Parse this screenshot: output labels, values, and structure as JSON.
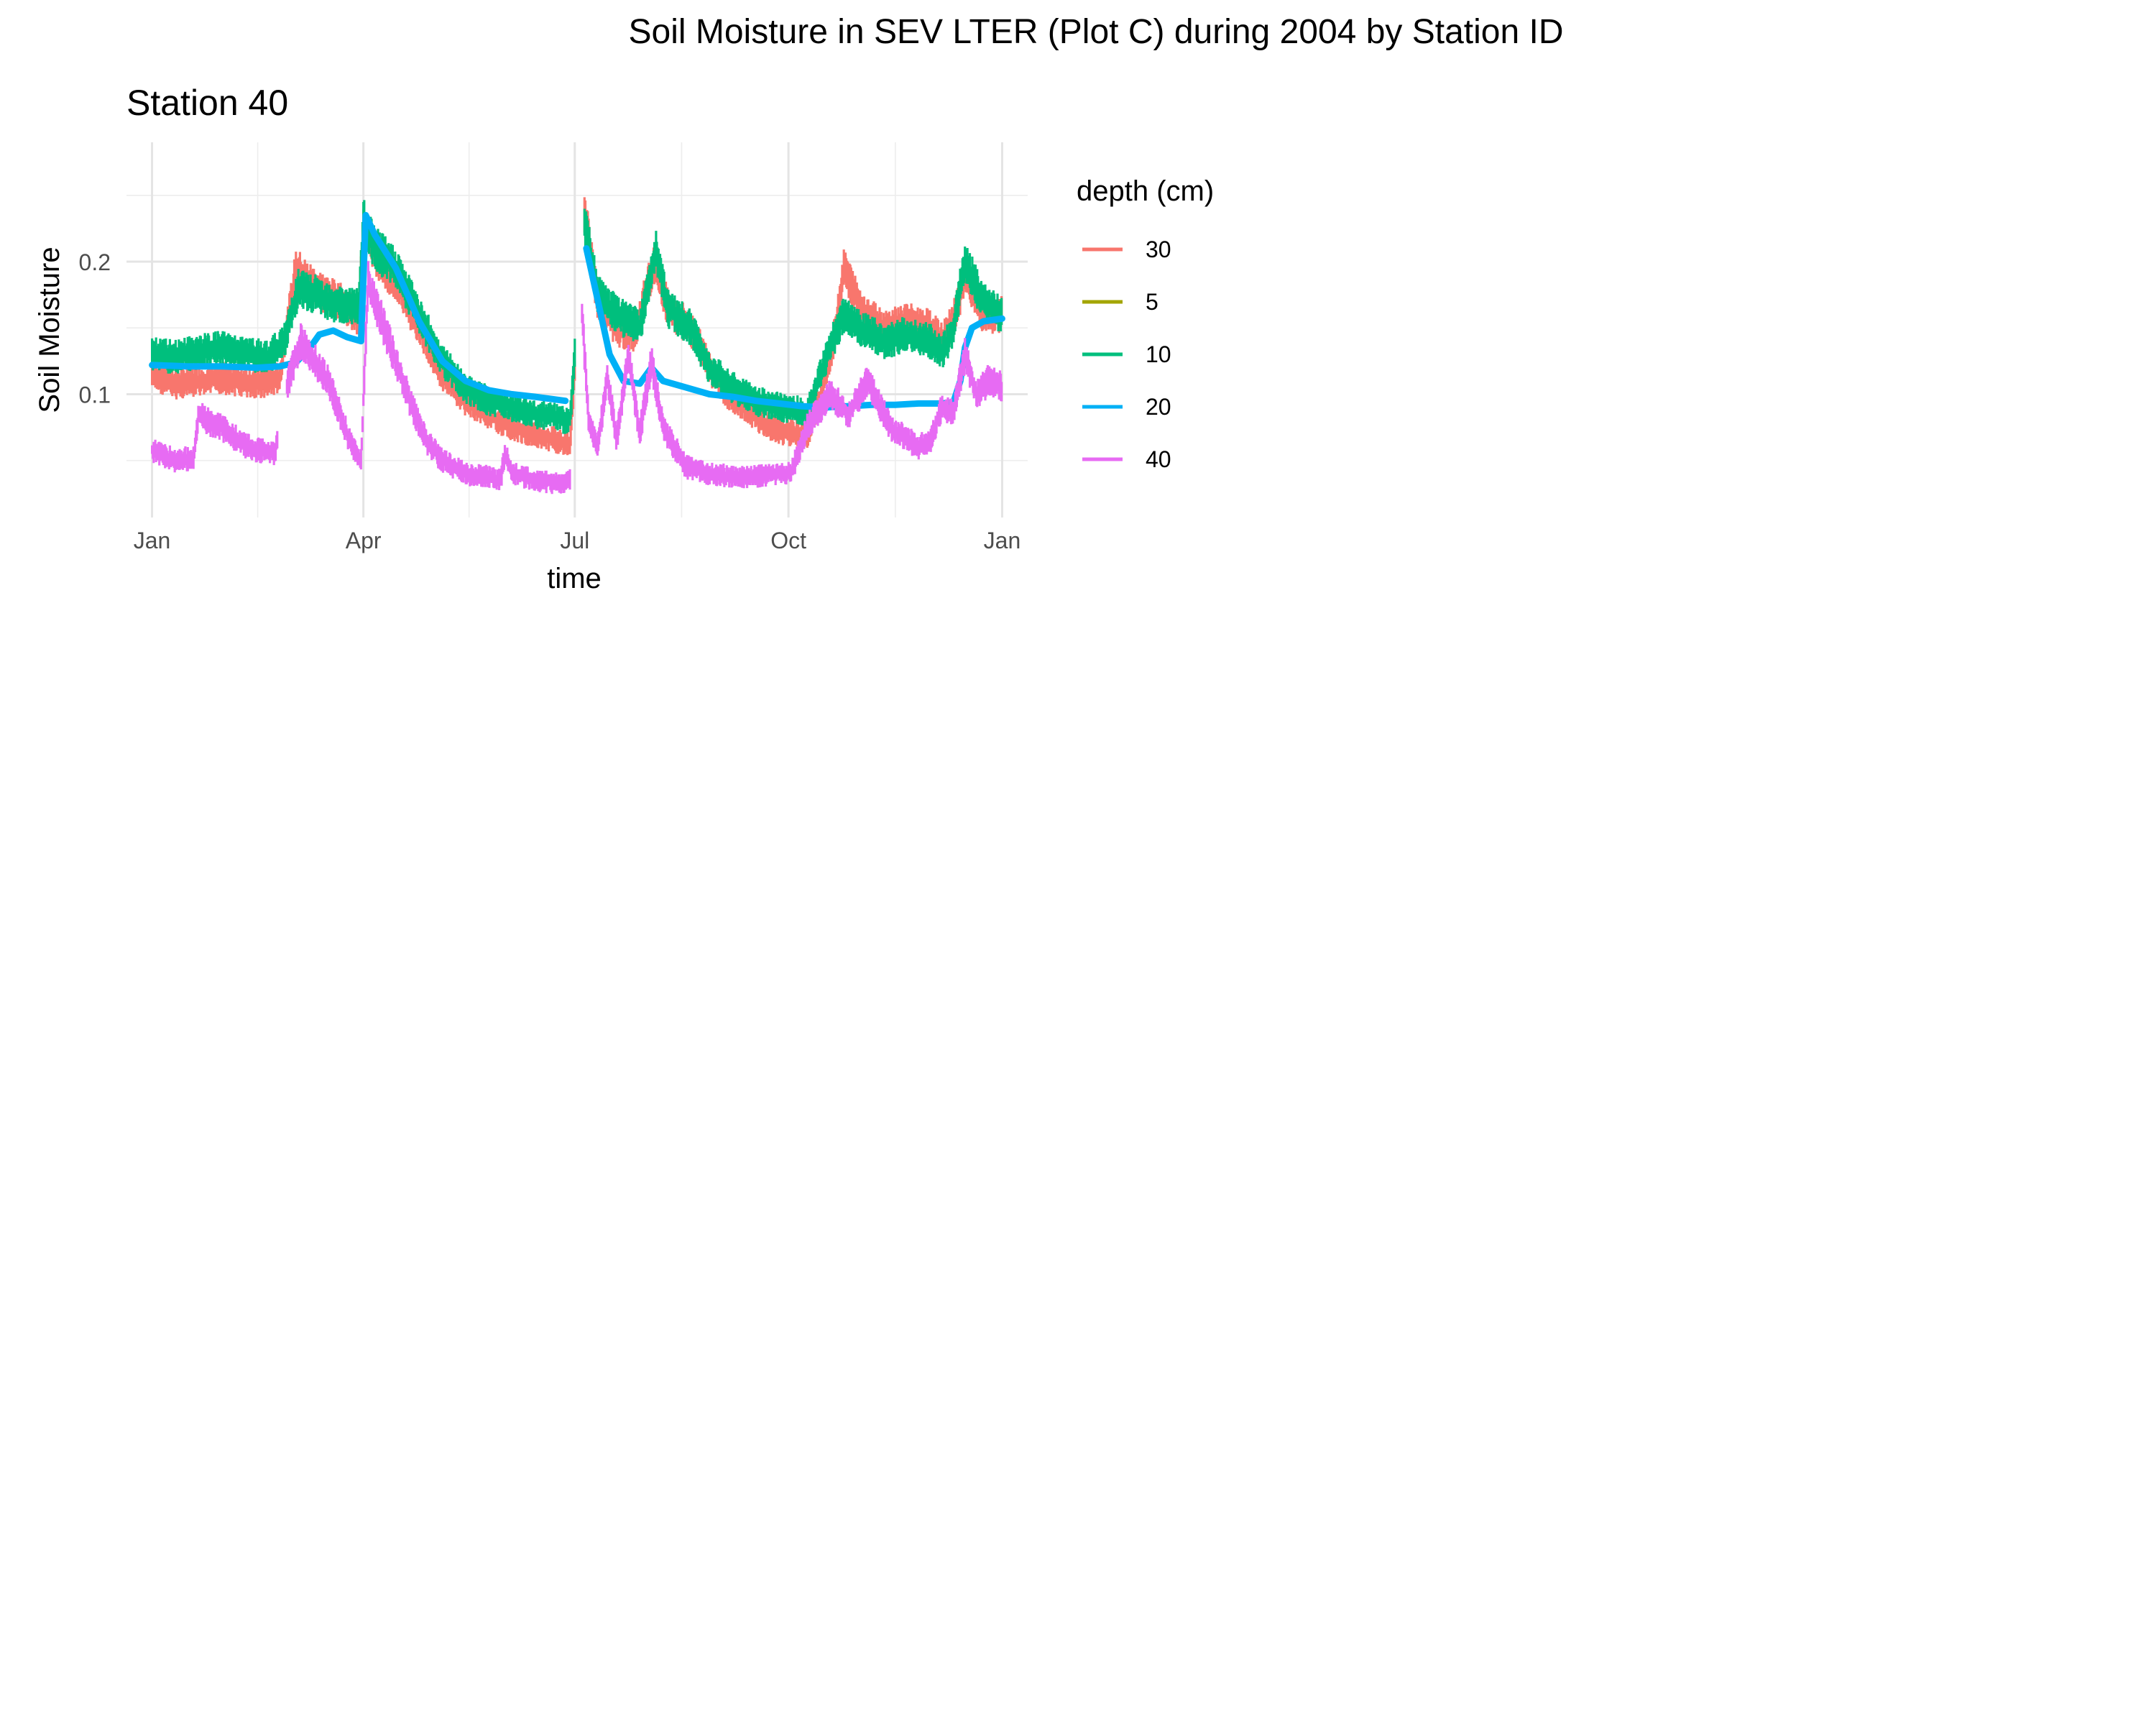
{
  "figure_title": "Soil Moisture in SEV LTER (Plot C) during 2004 by Station ID",
  "chart_data": {
    "type": "line",
    "title": "Soil Moisture in SEV LTER (Plot C) during 2004 by Station ID",
    "panel_title": "Station  40",
    "xlabel": "time",
    "ylabel": "Soil Moisture",
    "x_unit": "day of year 2004",
    "xlim": [
      -11,
      377
    ],
    "ylim": [
      0.007,
      0.29
    ],
    "x_ticks": [
      {
        "label": "Jan",
        "day": 0
      },
      {
        "label": "Apr",
        "day": 91
      },
      {
        "label": "Jul",
        "day": 182
      },
      {
        "label": "Oct",
        "day": 274
      },
      {
        "label": "Jan",
        "day": 366
      }
    ],
    "x_minor_days": [
      45.5,
      136.5,
      228,
      320
    ],
    "y_ticks": [
      {
        "label": "0.1",
        "value": 0.1
      },
      {
        "label": "0.2",
        "value": 0.2
      }
    ],
    "y_minor": [
      0.05,
      0.15,
      0.25
    ],
    "grid": true,
    "legend": {
      "title": "depth (cm)",
      "placement": "right",
      "entries": [
        "30",
        "5",
        "10",
        "20",
        "40"
      ]
    },
    "series": [
      {
        "name": "30",
        "color": "#F8766D",
        "style": "noisy",
        "gaps": [
          [
            182,
            186
          ]
        ],
        "points": [
          [
            0,
            0.115
          ],
          [
            10,
            0.108
          ],
          [
            20,
            0.11
          ],
          [
            30,
            0.112
          ],
          [
            45,
            0.108
          ],
          [
            55,
            0.112
          ],
          [
            62,
            0.195
          ],
          [
            67,
            0.185
          ],
          [
            75,
            0.175
          ],
          [
            85,
            0.165
          ],
          [
            89,
            0.158
          ],
          [
            91,
            0.225
          ],
          [
            96,
            0.205
          ],
          [
            105,
            0.185
          ],
          [
            115,
            0.15
          ],
          [
            125,
            0.115
          ],
          [
            135,
            0.095
          ],
          [
            145,
            0.085
          ],
          [
            155,
            0.075
          ],
          [
            165,
            0.07
          ],
          [
            175,
            0.065
          ],
          [
            180,
            0.062
          ],
          [
            186,
            0.24
          ],
          [
            192,
            0.17
          ],
          [
            200,
            0.15
          ],
          [
            208,
            0.145
          ],
          [
            216,
            0.2
          ],
          [
            222,
            0.165
          ],
          [
            232,
            0.15
          ],
          [
            240,
            0.12
          ],
          [
            248,
            0.1
          ],
          [
            255,
            0.09
          ],
          [
            262,
            0.08
          ],
          [
            270,
            0.072
          ],
          [
            278,
            0.07
          ],
          [
            282,
            0.068
          ],
          [
            288,
            0.1
          ],
          [
            293,
            0.135
          ],
          [
            298,
            0.195
          ],
          [
            305,
            0.165
          ],
          [
            315,
            0.15
          ],
          [
            325,
            0.155
          ],
          [
            335,
            0.15
          ],
          [
            340,
            0.14
          ],
          [
            345,
            0.155
          ],
          [
            350,
            0.19
          ],
          [
            358,
            0.16
          ],
          [
            366,
            0.16
          ]
        ]
      },
      {
        "name": "10",
        "color": "#00BF7D",
        "style": "noisy",
        "gaps": [
          [
            182,
            186
          ]
        ],
        "points": [
          [
            0,
            0.13
          ],
          [
            10,
            0.128
          ],
          [
            20,
            0.132
          ],
          [
            30,
            0.135
          ],
          [
            40,
            0.13
          ],
          [
            50,
            0.128
          ],
          [
            57,
            0.14
          ],
          [
            63,
            0.18
          ],
          [
            70,
            0.175
          ],
          [
            80,
            0.168
          ],
          [
            89,
            0.165
          ],
          [
            91,
            0.23
          ],
          [
            96,
            0.21
          ],
          [
            105,
            0.195
          ],
          [
            115,
            0.16
          ],
          [
            125,
            0.125
          ],
          [
            135,
            0.105
          ],
          [
            145,
            0.095
          ],
          [
            155,
            0.09
          ],
          [
            165,
            0.085
          ],
          [
            175,
            0.082
          ],
          [
            180,
            0.08
          ],
          [
            186,
            0.23
          ],
          [
            192,
            0.175
          ],
          [
            200,
            0.16
          ],
          [
            210,
            0.15
          ],
          [
            217,
            0.21
          ],
          [
            222,
            0.165
          ],
          [
            232,
            0.15
          ],
          [
            240,
            0.12
          ],
          [
            250,
            0.105
          ],
          [
            260,
            0.095
          ],
          [
            270,
            0.09
          ],
          [
            278,
            0.088
          ],
          [
            282,
            0.085
          ],
          [
            288,
            0.115
          ],
          [
            293,
            0.14
          ],
          [
            298,
            0.16
          ],
          [
            305,
            0.15
          ],
          [
            315,
            0.14
          ],
          [
            325,
            0.145
          ],
          [
            335,
            0.14
          ],
          [
            340,
            0.13
          ],
          [
            345,
            0.15
          ],
          [
            350,
            0.2
          ],
          [
            358,
            0.17
          ],
          [
            366,
            0.16
          ]
        ]
      },
      {
        "name": "20",
        "color": "#00B0F6",
        "style": "smooth",
        "gaps": [
          [
            179,
            187
          ]
        ],
        "points": [
          [
            0,
            0.122
          ],
          [
            15,
            0.121
          ],
          [
            30,
            0.121
          ],
          [
            45,
            0.12
          ],
          [
            55,
            0.121
          ],
          [
            62,
            0.124
          ],
          [
            68,
            0.135
          ],
          [
            72,
            0.145
          ],
          [
            78,
            0.148
          ],
          [
            84,
            0.143
          ],
          [
            90,
            0.14
          ],
          [
            92,
            0.235
          ],
          [
            96,
            0.22
          ],
          [
            105,
            0.195
          ],
          [
            115,
            0.155
          ],
          [
            125,
            0.125
          ],
          [
            135,
            0.11
          ],
          [
            145,
            0.103
          ],
          [
            155,
            0.1
          ],
          [
            165,
            0.098
          ],
          [
            178,
            0.095
          ],
          [
            187,
            0.21
          ],
          [
            192,
            0.17
          ],
          [
            197,
            0.13
          ],
          [
            203,
            0.11
          ],
          [
            210,
            0.108
          ],
          [
            215,
            0.12
          ],
          [
            220,
            0.11
          ],
          [
            230,
            0.105
          ],
          [
            240,
            0.1
          ],
          [
            250,
            0.098
          ],
          [
            260,
            0.095
          ],
          [
            270,
            0.093
          ],
          [
            280,
            0.091
          ],
          [
            290,
            0.09
          ],
          [
            300,
            0.091
          ],
          [
            310,
            0.092
          ],
          [
            320,
            0.092
          ],
          [
            330,
            0.093
          ],
          [
            340,
            0.093
          ],
          [
            345,
            0.094
          ],
          [
            348,
            0.11
          ],
          [
            350,
            0.135
          ],
          [
            353,
            0.15
          ],
          [
            358,
            0.155
          ],
          [
            366,
            0.157
          ]
        ]
      },
      {
        "name": "40",
        "color": "#E76BF3",
        "style": "noisy",
        "gaps": [
          [
            54,
            58
          ],
          [
            180,
            185
          ]
        ],
        "points": [
          [
            0,
            0.058
          ],
          [
            10,
            0.05
          ],
          [
            18,
            0.052
          ],
          [
            20,
            0.085
          ],
          [
            25,
            0.078
          ],
          [
            30,
            0.075
          ],
          [
            35,
            0.068
          ],
          [
            40,
            0.062
          ],
          [
            45,
            0.058
          ],
          [
            53,
            0.056
          ],
          [
            58,
            0.105
          ],
          [
            64,
            0.14
          ],
          [
            70,
            0.125
          ],
          [
            76,
            0.11
          ],
          [
            80,
            0.09
          ],
          [
            85,
            0.065
          ],
          [
            90,
            0.05
          ],
          [
            93,
            0.185
          ],
          [
            97,
            0.165
          ],
          [
            105,
            0.125
          ],
          [
            112,
            0.09
          ],
          [
            118,
            0.065
          ],
          [
            125,
            0.05
          ],
          [
            135,
            0.04
          ],
          [
            145,
            0.038
          ],
          [
            150,
            0.035
          ],
          [
            152,
            0.055
          ],
          [
            155,
            0.04
          ],
          [
            165,
            0.035
          ],
          [
            175,
            0.033
          ],
          [
            180,
            0.035
          ],
          [
            185,
            0.165
          ],
          [
            188,
            0.08
          ],
          [
            192,
            0.06
          ],
          [
            196,
            0.115
          ],
          [
            200,
            0.065
          ],
          [
            205,
            0.13
          ],
          [
            210,
            0.07
          ],
          [
            215,
            0.125
          ],
          [
            220,
            0.075
          ],
          [
            225,
            0.06
          ],
          [
            230,
            0.045
          ],
          [
            240,
            0.04
          ],
          [
            250,
            0.038
          ],
          [
            260,
            0.038
          ],
          [
            270,
            0.04
          ],
          [
            275,
            0.04
          ],
          [
            282,
            0.075
          ],
          [
            292,
            0.1
          ],
          [
            300,
            0.085
          ],
          [
            308,
            0.11
          ],
          [
            318,
            0.075
          ],
          [
            330,
            0.06
          ],
          [
            335,
            0.065
          ],
          [
            340,
            0.09
          ],
          [
            345,
            0.085
          ],
          [
            350,
            0.13
          ],
          [
            355,
            0.1
          ],
          [
            360,
            0.11
          ],
          [
            366,
            0.105
          ]
        ]
      }
    ]
  }
}
